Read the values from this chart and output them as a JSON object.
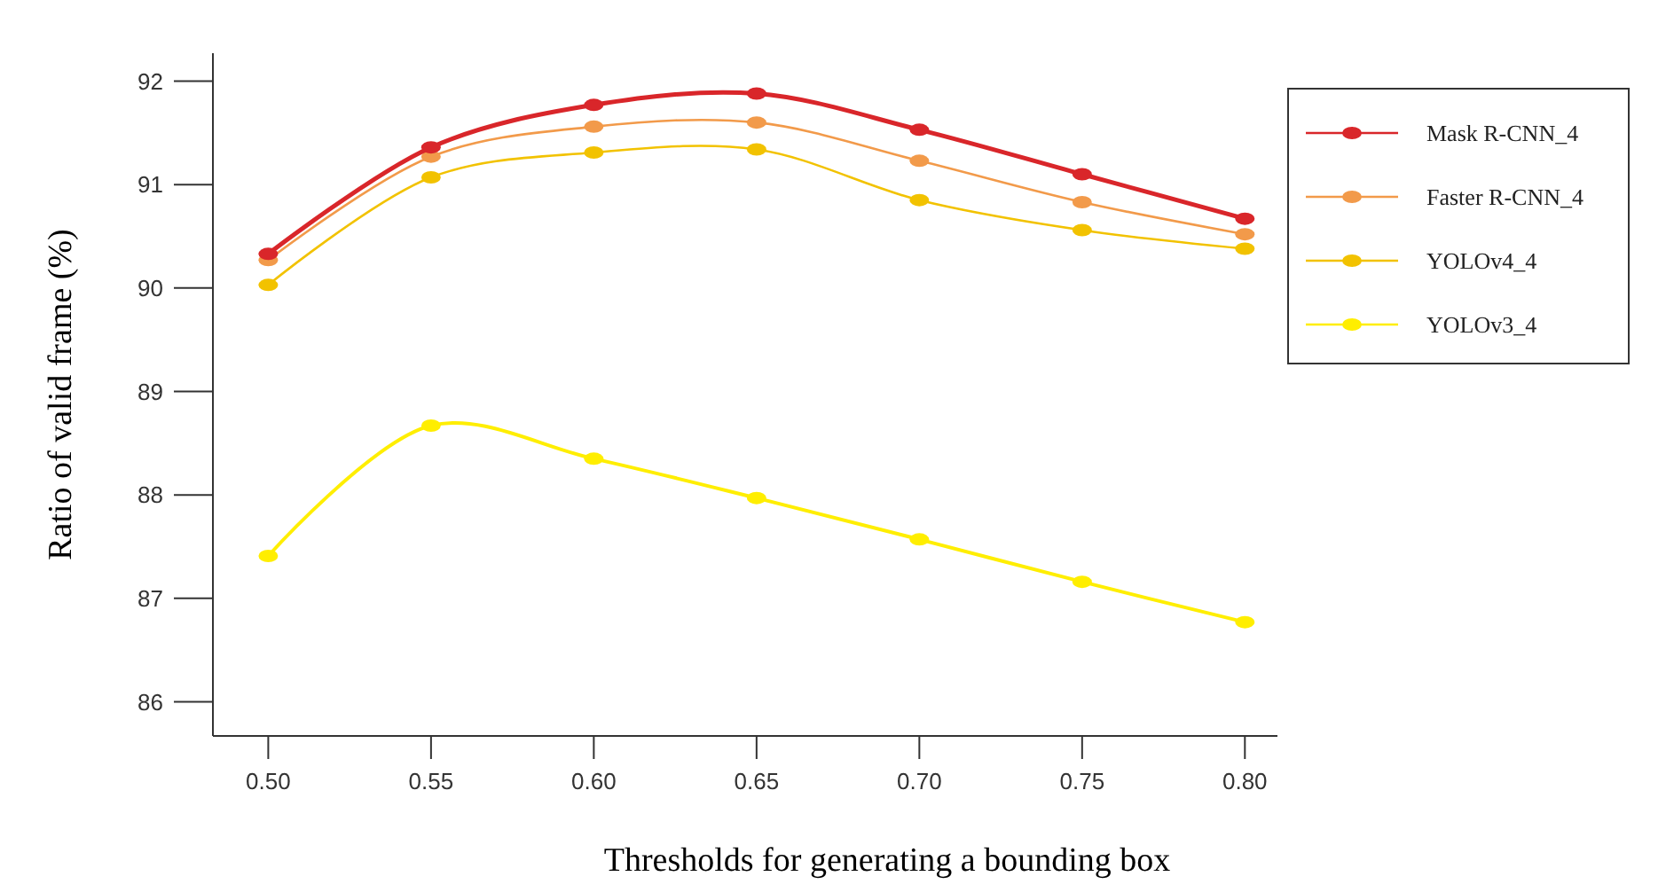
{
  "chart_data": {
    "type": "line",
    "xlabel": "Thresholds for generating a bounding box",
    "ylabel": "Ratio of valid frame (%)",
    "x": [
      0.5,
      0.55,
      0.6,
      0.65,
      0.7,
      0.75,
      0.8
    ],
    "series": [
      {
        "name": "Mask R-CNN_4",
        "color": "#d9262a",
        "values": [
          90.33,
          91.36,
          91.77,
          91.88,
          91.53,
          91.1,
          90.67
        ]
      },
      {
        "name": "Faster R-CNN_4",
        "color": "#f29a4a",
        "values": [
          90.27,
          91.27,
          91.56,
          91.6,
          91.23,
          90.83,
          90.52
        ]
      },
      {
        "name": "YOLOv4_4",
        "color": "#f2c200",
        "values": [
          90.03,
          91.07,
          91.31,
          91.34,
          90.85,
          90.56,
          90.38
        ]
      },
      {
        "name": "YOLOv3_4",
        "color": "#ffee00",
        "values": [
          87.41,
          88.67,
          88.35,
          87.97,
          87.57,
          87.16,
          86.77
        ]
      }
    ],
    "xlim": [
      0.483,
      0.81
    ],
    "ylim": [
      85.67,
      92.27
    ],
    "xticks": [
      {
        "value": 0.5,
        "label": "0.50"
      },
      {
        "value": 0.55,
        "label": "0.55"
      },
      {
        "value": 0.6,
        "label": "0.60"
      },
      {
        "value": 0.65,
        "label": "0.65"
      },
      {
        "value": 0.7,
        "label": "0.70"
      },
      {
        "value": 0.75,
        "label": "0.75"
      },
      {
        "value": 0.8,
        "label": "0.80"
      }
    ],
    "yticks": [
      86,
      87,
      88,
      89,
      90,
      91,
      92
    ],
    "grid": false,
    "legend": "right",
    "marker": "circle",
    "line_style": "solid"
  }
}
